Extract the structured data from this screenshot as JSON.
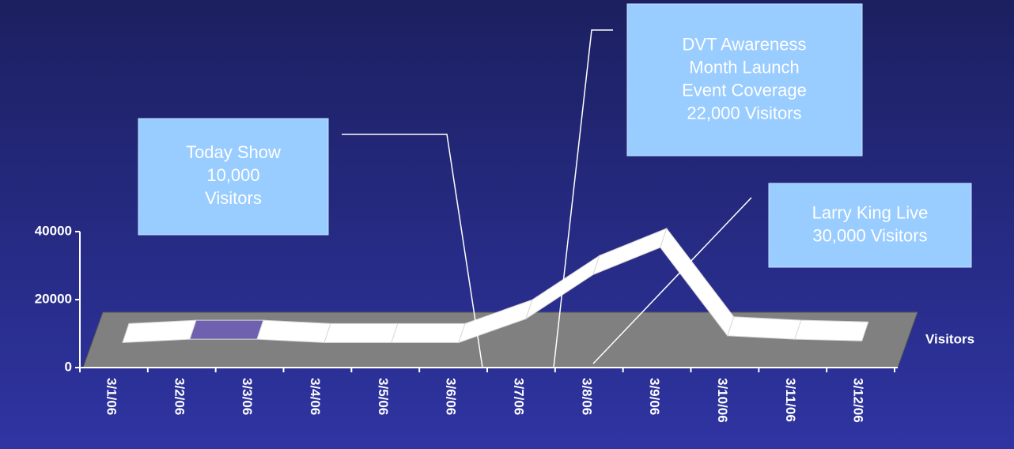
{
  "chart_data": {
    "type": "line3d",
    "categories": [
      "3/1/06",
      "3/2/06",
      "3/3/06",
      "3/4/06",
      "3/5/06",
      "3/6/06",
      "3/7/06",
      "3/8/06",
      "3/9/06",
      "3/10/06",
      "3/11/06",
      "3/12/06"
    ],
    "series": [
      {
        "name": "Visitors",
        "color": "#ffffff",
        "values": [
          2000,
          3000,
          3000,
          2000,
          2000,
          2000,
          9000,
          22000,
          30000,
          4000,
          3000,
          2500
        ]
      }
    ],
    "highlight_segment": 1,
    "highlight_color": "#7060b0",
    "floor_color": "#808080",
    "ylim": [
      0,
      40000
    ],
    "yticks": [
      0,
      20000,
      40000
    ],
    "annotations": [
      {
        "lines": [
          "Today Show",
          "10,000",
          "Visitors"
        ]
      },
      {
        "lines": [
          "DVT Awareness",
          "Month Launch",
          "Event Coverage",
          "22,000 Visitors"
        ]
      },
      {
        "lines": [
          "Larry King Live",
          "30,000 Visitors"
        ]
      }
    ]
  }
}
